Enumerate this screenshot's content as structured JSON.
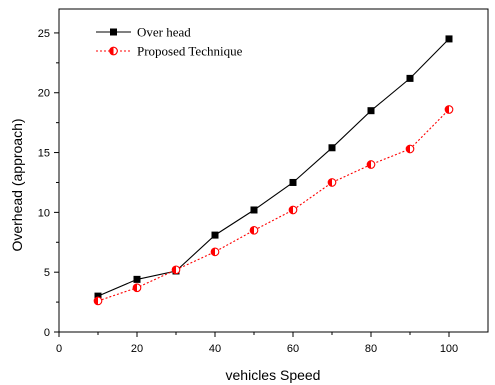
{
  "chart_data": {
    "type": "line",
    "xlabel": "vehicles Speed",
    "ylabel": "Overhead (approach)",
    "xlim": [
      0,
      110
    ],
    "ylim": [
      0,
      27
    ],
    "x_ticks": [
      0,
      20,
      40,
      60,
      80,
      100
    ],
    "y_ticks": [
      0,
      5,
      10,
      15,
      20,
      25
    ],
    "grid": false,
    "legend_position": "top-left",
    "x": [
      10,
      20,
      30,
      40,
      50,
      60,
      70,
      80,
      90,
      100
    ],
    "series": [
      {
        "name": "Over head",
        "values": [
          3.0,
          4.4,
          5.1,
          8.1,
          10.2,
          12.5,
          15.4,
          18.5,
          21.2,
          24.5
        ],
        "color": "#000000",
        "line_style": "solid",
        "marker": "filled-square"
      },
      {
        "name": "Proposed Technique",
        "values": [
          2.6,
          3.7,
          5.2,
          6.7,
          8.5,
          10.2,
          12.5,
          14.0,
          15.3,
          18.6
        ],
        "color": "#ff0000",
        "line_style": "dotted",
        "marker": "half-filled-circle"
      }
    ]
  }
}
